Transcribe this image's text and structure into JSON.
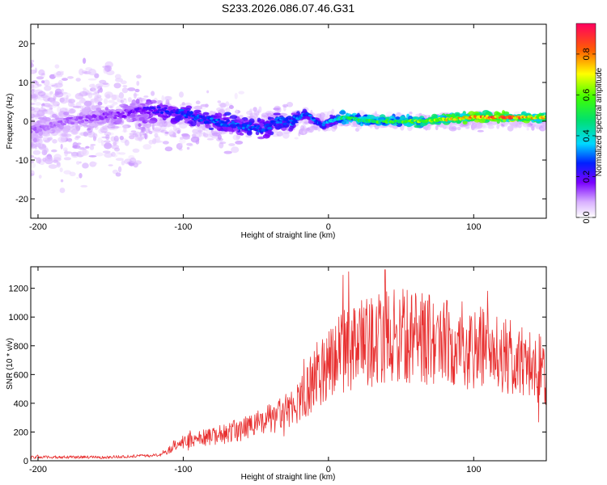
{
  "title": "S233.2026.086.07.46.G31",
  "chart_data": [
    {
      "type": "heatmap",
      "xlabel": "Height of straight line (km)",
      "ylabel": "Frequency (Hz)",
      "xlim": [
        -205,
        150
      ],
      "ylim": [
        -25,
        25
      ],
      "xticks": [
        -200,
        -100,
        0,
        100
      ],
      "yticks": [
        20,
        10,
        0,
        -10,
        -20
      ],
      "colorbar": {
        "label": "Normalized spectral amplitude",
        "range": [
          0.0,
          0.95
        ],
        "ticks": [
          0.0,
          0.2,
          0.4,
          0.6,
          0.8
        ],
        "tick_labels": [
          "0.0",
          "0.2",
          "0.4",
          "0.6",
          "0.8"
        ]
      },
      "ridge": {
        "x": [
          -200,
          -180,
          -160,
          -140,
          -120,
          -100,
          -80,
          -60,
          -45,
          -35,
          -25,
          -15,
          -5,
          0,
          10,
          30,
          60,
          100,
          130,
          150
        ],
        "frequency": [
          -2,
          0,
          1,
          2,
          3,
          2,
          0,
          -1,
          -2,
          0,
          0,
          2,
          -1,
          0,
          1,
          0,
          0,
          1,
          1,
          1
        ],
        "amplitude": [
          0.12,
          0.12,
          0.14,
          0.16,
          0.22,
          0.28,
          0.3,
          0.3,
          0.28,
          0.3,
          0.32,
          0.3,
          0.3,
          0.34,
          0.5,
          0.55,
          0.6,
          0.8,
          0.85,
          0.7
        ]
      }
    },
    {
      "type": "line",
      "xlabel": "Height of straight line (km)",
      "ylabel": "SNR (10 * v/v)",
      "xlim": [
        -205,
        150
      ],
      "ylim": [
        0,
        1350
      ],
      "xticks": [
        -200,
        -100,
        0,
        100
      ],
      "yticks": [
        0,
        200,
        400,
        600,
        800,
        1000,
        1200
      ],
      "series": [
        {
          "name": "SNR",
          "color": "#e83030",
          "envelope_x": [
            -205,
            -150,
            -115,
            -105,
            -90,
            -70,
            -50,
            -40,
            -30,
            -20,
            -10,
            0,
            10,
            20,
            30,
            40,
            50,
            60,
            70,
            80,
            90,
            100,
            110,
            120,
            130,
            140,
            150
          ],
          "envelope_y": [
            25,
            25,
            40,
            120,
            150,
            190,
            250,
            290,
            330,
            420,
            560,
            700,
            760,
            800,
            830,
            860,
            870,
            860,
            850,
            830,
            810,
            790,
            760,
            730,
            690,
            660,
            620
          ],
          "peak": {
            "x": 39,
            "y": 1330
          }
        }
      ]
    }
  ]
}
